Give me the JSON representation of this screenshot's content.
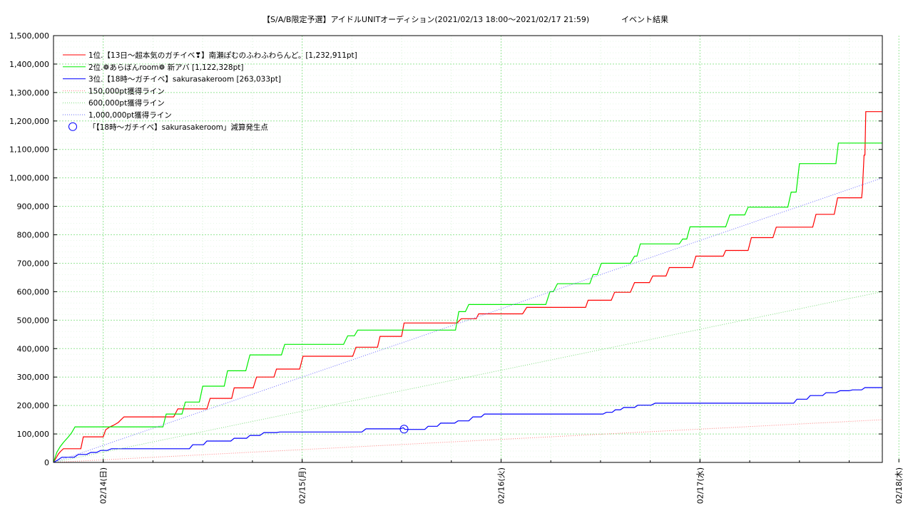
{
  "chart_data": {
    "type": "line",
    "title": "【S/A/B限定予選】アイドルUNITオーディション(2021/02/13 18:00～2021/02/17 21:59)",
    "title_right": "イベント結果",
    "xlabel": "",
    "ylabel": "",
    "grid": true,
    "legend_position": "top-left",
    "x_unit": "hours since 2021/02/13 18:00",
    "xlim": [
      0,
      100
    ],
    "ylim": [
      0,
      1500000
    ],
    "y_ticks": [
      0,
      100000,
      200000,
      300000,
      400000,
      500000,
      600000,
      700000,
      800000,
      900000,
      1000000,
      1100000,
      1200000,
      1300000,
      1400000,
      1500000
    ],
    "y_tick_labels": [
      "0",
      "100,000",
      "200,000",
      "300,000",
      "400,000",
      "500,000",
      "600,000",
      "700,000",
      "800,000",
      "900,000",
      "1,000,000",
      "1,100,000",
      "1,200,000",
      "1,300,000",
      "1,400,000",
      "1,500,000"
    ],
    "x_ticks": [
      6,
      30,
      54,
      78,
      102
    ],
    "x_tick_labels": [
      "02/14(日)",
      "02/15(月)",
      "02/16(火)",
      "02/17(水)",
      "02/18(木)"
    ],
    "series": [
      {
        "name": "1位.【13日～超本気のガチイベ❣】南瀬ぽむのふわふわらんど。[1,232,911pt]",
        "color": "#ff0000",
        "style": "solid",
        "x": [
          0,
          0.3,
          0.6,
          0.9,
          1.2,
          3.3,
          3.6,
          6.0,
          6.3,
          6.8,
          7.2,
          7.8,
          8.5,
          14.5,
          15.0,
          18.5,
          18.9,
          21.5,
          21.8,
          24.1,
          24.5,
          26.6,
          26.9,
          29.7,
          30.1,
          36.1,
          36.5,
          39.1,
          39.4,
          42.0,
          42.3,
          48.7,
          49.2,
          51.0,
          51.3,
          56.6,
          57.1,
          64.2,
          64.5,
          67.3,
          67.7,
          69.6,
          70.1,
          71.9,
          72.3,
          73.9,
          74.3,
          77.1,
          77.5,
          80.8,
          81.1,
          83.8,
          84.2,
          86.8,
          87.2,
          91.6,
          92.0,
          94.2,
          94.6,
          97.5,
          97.6,
          97.8,
          97.9,
          98.0,
          100.0
        ],
        "values": [
          0,
          15000,
          30000,
          40000,
          48000,
          48000,
          90000,
          90000,
          115000,
          125000,
          130000,
          140000,
          160000,
          160000,
          188000,
          188000,
          225000,
          225000,
          262000,
          262000,
          300000,
          300000,
          328000,
          328000,
          373000,
          373000,
          405000,
          405000,
          443000,
          443000,
          490000,
          490000,
          505000,
          505000,
          522000,
          522000,
          545000,
          545000,
          570000,
          570000,
          598000,
          598000,
          632000,
          632000,
          655000,
          655000,
          685000,
          685000,
          725000,
          725000,
          745000,
          745000,
          790000,
          790000,
          827000,
          827000,
          872000,
          872000,
          930000,
          930000,
          960000,
          1080000,
          1080000,
          1232911,
          1232911
        ]
      },
      {
        "name": "2位.❁あらぼんroom❁ 新アバ [1,122,328pt]",
        "color": "#00ee00",
        "style": "solid",
        "x": [
          0,
          0.4,
          0.8,
          1.2,
          1.8,
          2.2,
          2.6,
          13.2,
          13.6,
          15.5,
          15.9,
          17.6,
          18.0,
          20.6,
          21.0,
          23.2,
          23.7,
          27.5,
          27.9,
          35.0,
          35.5,
          36.3,
          36.7,
          48.5,
          48.9,
          49.7,
          50.1,
          59.4,
          59.9,
          60.3,
          60.8,
          64.7,
          65.1,
          65.6,
          66.1,
          69.6,
          70.1,
          70.4,
          70.8,
          75.5,
          75.9,
          76.4,
          76.8,
          81.1,
          81.6,
          83.4,
          83.8,
          88.6,
          89.0,
          89.6,
          90.0,
          94.4,
          94.7,
          95.1,
          100.0
        ],
        "values": [
          0,
          35000,
          55000,
          70000,
          90000,
          105000,
          125000,
          125000,
          170000,
          170000,
          212000,
          212000,
          268000,
          268000,
          322000,
          322000,
          378000,
          378000,
          415000,
          415000,
          445000,
          445000,
          465000,
          465000,
          530000,
          530000,
          555000,
          555000,
          600000,
          600000,
          628000,
          628000,
          660000,
          660000,
          700000,
          700000,
          725000,
          725000,
          768000,
          768000,
          785000,
          785000,
          828000,
          828000,
          870000,
          870000,
          897000,
          897000,
          950000,
          950000,
          1050000,
          1050000,
          1122328,
          1122328,
          1122328
        ]
      },
      {
        "name": "3位.【18時～ガチイベ】sakurasakeroom [263,033pt]",
        "color": "#0000ff",
        "style": "solid",
        "x": [
          0,
          0.5,
          1.0,
          2.5,
          3.0,
          4.0,
          4.5,
          5.2,
          5.7,
          6.5,
          7.0,
          16.4,
          16.8,
          18.1,
          18.5,
          21.4,
          21.8,
          23.3,
          23.7,
          24.9,
          25.4,
          26.9,
          27.3,
          37.2,
          37.7,
          41.8,
          42.2,
          42.4,
          42.6,
          44.8,
          45.2,
          46.3,
          46.7,
          48.4,
          48.8,
          50.1,
          50.6,
          51.6,
          52.0,
          66.3,
          66.7,
          67.4,
          67.8,
          68.4,
          68.8,
          70.1,
          70.5,
          72.1,
          72.6,
          89.3,
          89.7,
          90.9,
          91.3,
          92.8,
          93.2,
          94.4,
          94.9,
          96.0,
          96.4,
          97.5,
          97.9,
          100.0
        ],
        "values": [
          0,
          8000,
          18000,
          18000,
          28000,
          28000,
          35000,
          35000,
          42000,
          42000,
          48000,
          48000,
          62000,
          62000,
          75000,
          75000,
          85000,
          85000,
          95000,
          95000,
          105000,
          105000,
          107000,
          107000,
          118000,
          118000,
          122000,
          116000,
          116000,
          116000,
          127000,
          127000,
          138000,
          138000,
          146000,
          146000,
          160000,
          160000,
          170000,
          170000,
          176000,
          176000,
          185000,
          185000,
          193000,
          193000,
          201000,
          201000,
          208000,
          208000,
          222000,
          222000,
          235000,
          235000,
          245000,
          245000,
          252000,
          252000,
          255000,
          255000,
          263033,
          263033
        ]
      },
      {
        "name": "150,000pt獲得ライン",
        "color": "#ff7f7f",
        "style": "dotted",
        "x": [
          0,
          100
        ],
        "values": [
          0,
          150000
        ]
      },
      {
        "name": "600,000pt獲得ライン",
        "color": "#7fdd7f",
        "style": "dotted",
        "x": [
          0,
          100
        ],
        "values": [
          0,
          600000
        ]
      },
      {
        "name": "1,000,000pt獲得ライン",
        "color": "#6f6fff",
        "style": "dotted",
        "x": [
          0,
          100
        ],
        "values": [
          0,
          1000000
        ]
      }
    ],
    "markers": [
      {
        "name": "「【18時～ガチイベ】sakurasakeroom」減算発生点",
        "color": "#0000ff",
        "shape": "open-circle",
        "x": 42.3,
        "y": 117000
      }
    ]
  }
}
